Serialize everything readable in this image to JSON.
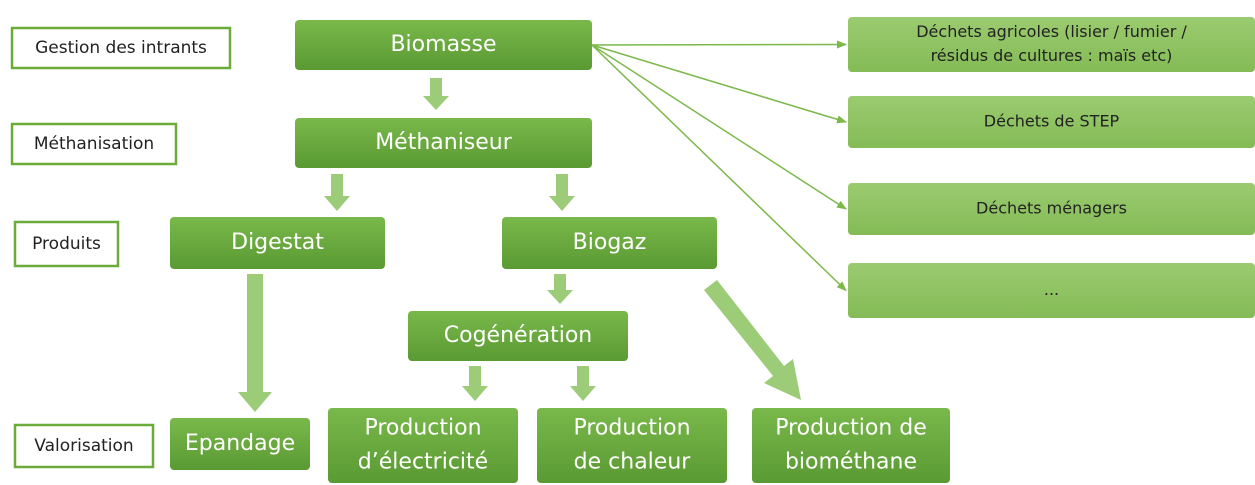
{
  "stages": [
    "Gestion des intrants",
    "Méthanisation",
    "Produits",
    "Valorisation"
  ],
  "nodes": [
    {
      "lines": [
        "Biomasse"
      ]
    },
    {
      "lines": [
        "Méthaniseur"
      ]
    },
    {
      "lines": [
        "Digestat"
      ]
    },
    {
      "lines": [
        "Biogaz"
      ]
    },
    {
      "lines": [
        "Cogénération"
      ]
    },
    {
      "lines": [
        "Epandage"
      ]
    },
    {
      "lines": [
        "Production",
        "d’électricité"
      ]
    },
    {
      "lines": [
        "Production",
        "de chaleur"
      ]
    },
    {
      "lines": [
        "Production de",
        "biométhane"
      ]
    }
  ],
  "inputs": [
    {
      "lines": [
        "Déchets agricoles (lisier / fumier /",
        "résidus de cultures : maïs etc)"
      ]
    },
    {
      "lines": [
        "Déchets de STEP"
      ]
    },
    {
      "lines": [
        "Déchets ménagers"
      ]
    },
    {
      "lines": [
        "..."
      ]
    }
  ]
}
